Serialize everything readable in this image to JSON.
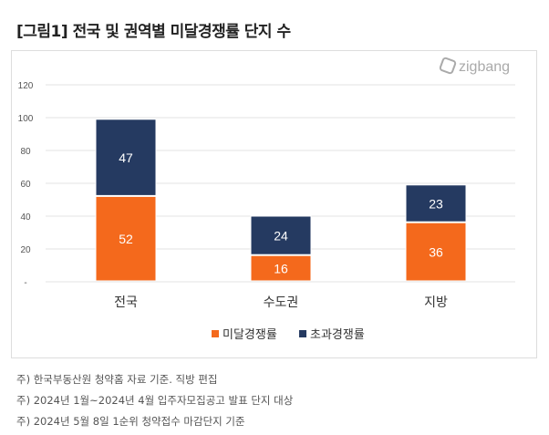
{
  "title": "[그림1] 전국 및 권역별 미달경쟁률 단지 수",
  "logo": "zigbang",
  "notes": [
    "주) 한국부동산원 청약홈 자료 기준. 직방 편집",
    "주) 2024년 1월~2024년 4월 입주자모집공고 발표 단지 대상",
    "주) 2024년 5월 8일 1순위 청약접수 마감단지 기준"
  ],
  "chart_data": {
    "type": "bar",
    "stacked": true,
    "categories": [
      "전국",
      "수도권",
      "지방"
    ],
    "series": [
      {
        "name": "미달경쟁률",
        "values": [
          52,
          16,
          36
        ],
        "color": "#f4691c"
      },
      {
        "name": "초과경쟁률",
        "values": [
          47,
          24,
          23
        ],
        "color": "#253a61"
      }
    ],
    "yticks": [
      "-",
      "20",
      "40",
      "60",
      "80",
      "100",
      "120"
    ],
    "ylim": [
      0,
      120
    ],
    "grid": true,
    "legend": "bottom"
  }
}
